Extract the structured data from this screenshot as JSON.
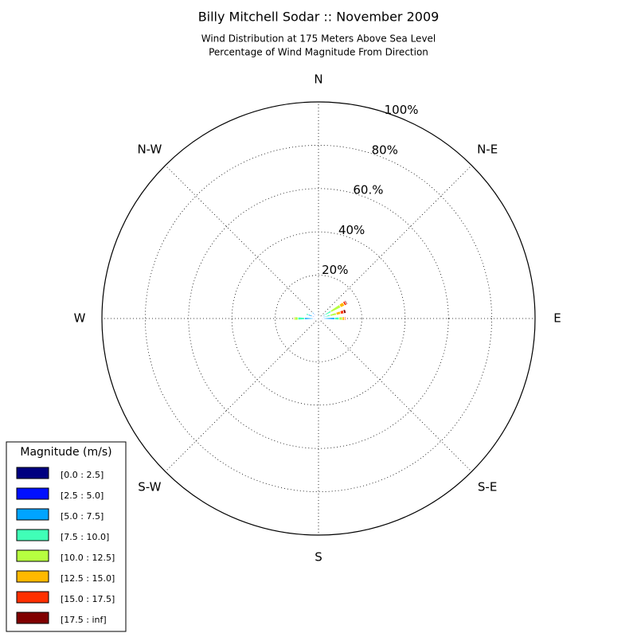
{
  "chart_data": {
    "type": "windrose",
    "title": "Billy Mitchell Sodar :: November 2009",
    "subtitle": [
      "Wind Distribution at 175 Meters Above Sea Level",
      "Percentage of Wind Magnitude From Direction"
    ],
    "direction_labels": [
      "N",
      "N-E",
      "E",
      "S-E",
      "S",
      "S-W",
      "W",
      "N-W"
    ],
    "x": [
      60,
      75,
      90,
      270,
      290,
      315
    ],
    "rlim": [
      0,
      100
    ],
    "rticks": [
      {
        "value": 20,
        "label": "20%"
      },
      {
        "value": 40,
        "label": "40%"
      },
      {
        "value": 60,
        "label": "60.%"
      },
      {
        "value": 80,
        "label": "80%"
      },
      {
        "value": 100,
        "label": "100%"
      }
    ],
    "grid": true,
    "legend_title": "Magnitude (m/s)",
    "legend": "lower left",
    "series": [
      {
        "name": "[0.0 : 2.5]",
        "color": "#000080",
        "values": [
          0.5,
          0.5,
          0.5,
          0.5,
          1,
          1.5
        ]
      },
      {
        "name": "[2.5 : 5.0]",
        "color": "#0010ff",
        "values": [
          1,
          1,
          2,
          2,
          2,
          1.5
        ]
      },
      {
        "name": "[5.0 : 7.5]",
        "color": "#00a4ff",
        "values": [
          2,
          2,
          5,
          4,
          2,
          1
        ]
      },
      {
        "name": "[7.5 : 10.0]",
        "color": "#40ffb7",
        "values": [
          3,
          2,
          2,
          3,
          1,
          0
        ]
      },
      {
        "name": "[10.0 : 12.5]",
        "color": "#b7ff40",
        "values": [
          5,
          3,
          1.5,
          1.5,
          0,
          0
        ]
      },
      {
        "name": "[12.5 : 15.0]",
        "color": "#ffb900",
        "values": [
          2,
          2,
          1,
          0.5,
          0,
          0
        ]
      },
      {
        "name": "[15.0 : 17.5]",
        "color": "#ff3000",
        "values": [
          1,
          1.5,
          0.5,
          0,
          0,
          0
        ]
      },
      {
        "name": "[17.5 : inf]",
        "color": "#800000",
        "values": [
          0.5,
          1,
          0,
          0,
          0,
          0
        ]
      }
    ]
  }
}
